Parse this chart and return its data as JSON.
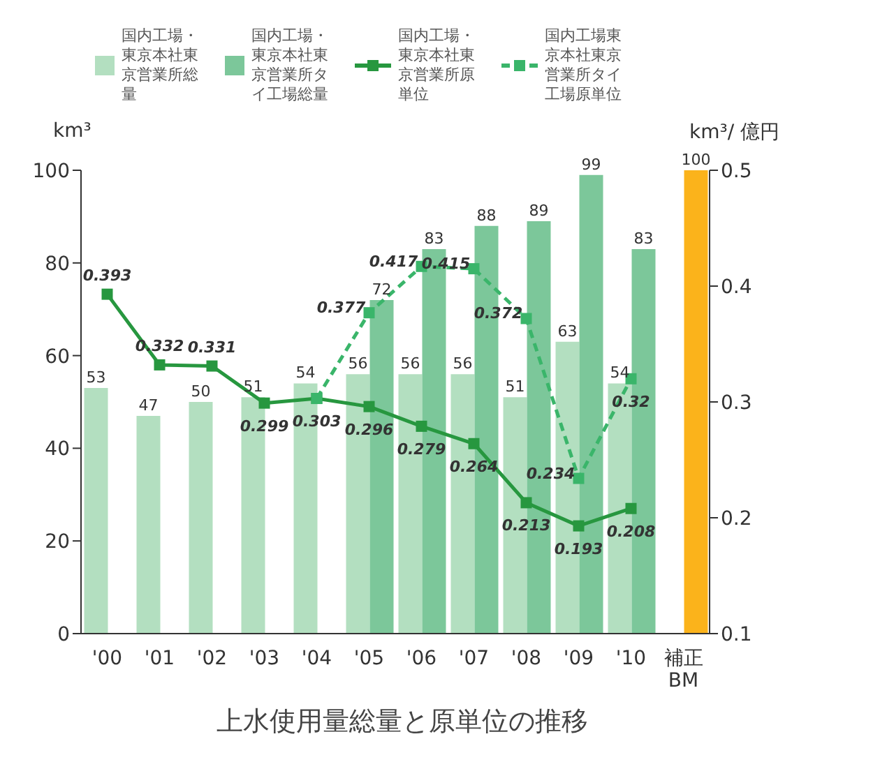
{
  "chart_data": {
    "type": "bar",
    "title": "上水使用量総量と原単位の推移",
    "ylabel": "km³",
    "y2label": "km³/ 億円",
    "categories": [
      "'00",
      "'01",
      "'02",
      "'03",
      "'04",
      "'05",
      "'06",
      "'07",
      "'08",
      "'09",
      "'10",
      "補正\nBM"
    ],
    "series": [
      {
        "name": "国内工場・東京本社東京営業所総量",
        "color": "#b3dfc0",
        "values": [
          53,
          47,
          50,
          51,
          54,
          56,
          56,
          56,
          51,
          63,
          54,
          null
        ]
      },
      {
        "name": "国内工場・東京本社東京営業所タイ工場総量",
        "color": "#7cc79a",
        "colors": [
          null,
          null,
          null,
          null,
          null,
          "#7cc79a",
          "#7cc79a",
          "#7cc79a",
          "#7cc79a",
          "#7cc79a",
          "#7cc79a",
          "#fbb31b"
        ],
        "values": [
          null,
          null,
          null,
          null,
          null,
          72,
          83,
          88,
          89,
          99,
          83,
          100
        ]
      },
      {
        "name": "国内工場・東京本社東京営業所原単位",
        "type": "line",
        "axis": "y2",
        "color": "#27973f",
        "line_style": "solid",
        "values": [
          0.393,
          0.332,
          0.331,
          0.299,
          0.303,
          0.296,
          0.279,
          0.264,
          0.213,
          0.193,
          0.208,
          null
        ]
      },
      {
        "name": "国内工場東京本社東京営業所タイ工場原単位",
        "type": "line",
        "axis": "y2",
        "color": "#3ab56a",
        "line_style": "dashed",
        "values": [
          null,
          null,
          null,
          null,
          0.303,
          0.377,
          0.417,
          0.415,
          0.372,
          0.234,
          0.32,
          null
        ],
        "value_labels": [
          null,
          null,
          null,
          null,
          null,
          "0.377",
          "0.417",
          "0.415",
          "0.372",
          "0.234",
          "0.32",
          null
        ]
      }
    ],
    "ylim": [
      0,
      100
    ],
    "yticks": [
      0,
      20,
      40,
      60,
      80,
      100
    ],
    "y2lim": [
      0.1,
      0.5
    ],
    "y2ticks": [
      0.1,
      0.2,
      0.3,
      0.4,
      0.5
    ],
    "data_labels": true,
    "marker": "square",
    "grid": false,
    "legend": "top"
  }
}
